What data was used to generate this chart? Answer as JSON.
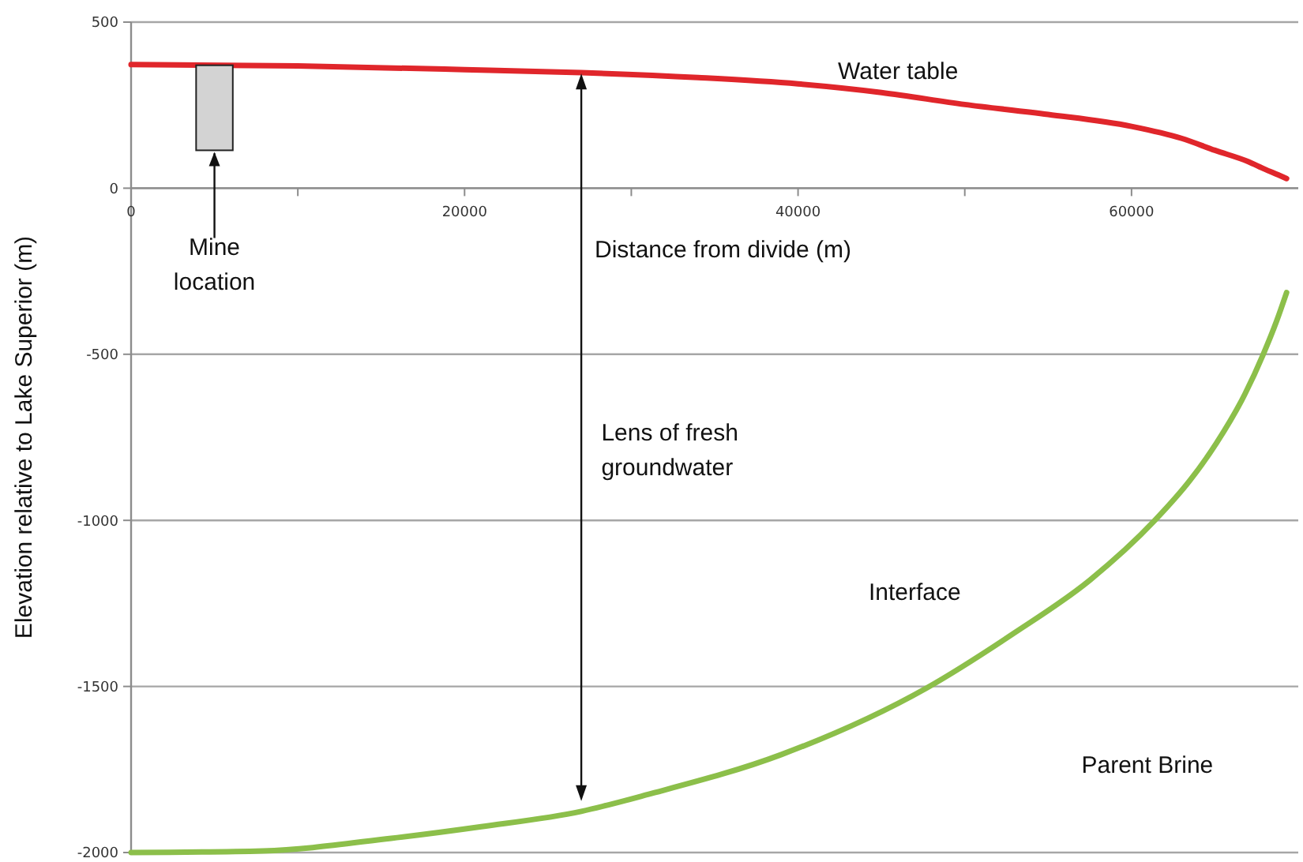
{
  "chart_data": {
    "type": "line",
    "xlabel": "Distance from divide (m)",
    "ylabel": "Elevation relative to Lake Superior (m)",
    "xlim": [
      0,
      70000
    ],
    "xticks": [
      0,
      {
        "value": 10000,
        "label": null
      },
      20000,
      {
        "value": 30000,
        "label": null
      },
      40000,
      {
        "value": 50000,
        "label": null
      },
      60000
    ],
    "ylim": [
      -2000,
      500
    ],
    "yticks": [
      -2000,
      -1500,
      -1000,
      -500,
      0,
      500
    ],
    "grid": "y",
    "marker": "none",
    "line_style": "solid",
    "series": [
      {
        "color": "#e0262b",
        "x": [
          0,
          10000,
          20000,
          27000,
          34000,
          40000,
          45000,
          50000,
          55000,
          60000,
          63000,
          65000,
          67000,
          68000,
          68800,
          69300
        ],
        "values": [
          372,
          368,
          357,
          348,
          333,
          314,
          288,
          252,
          222,
          186,
          150,
          114,
          80,
          57,
          40,
          29
        ]
      },
      {
        "color": "#8cbf4a",
        "x": [
          0,
          7900,
          15600,
          21000,
          27000,
          31000,
          39000,
          47700,
          53000,
          57500,
          61400,
          63500,
          65100,
          66800,
          67900,
          68700,
          69300
        ],
        "values": [
          -2000,
          -1995,
          -1957,
          -1922,
          -1876,
          -1825,
          -1705,
          -1505,
          -1338,
          -1180,
          -1000,
          -880,
          -767,
          -620,
          -500,
          -400,
          -314
        ]
      }
    ],
    "annotations": [
      "Water table",
      "Mine location",
      "Lens of fresh groundwater",
      "Interface",
      "Parent Brine"
    ]
  }
}
